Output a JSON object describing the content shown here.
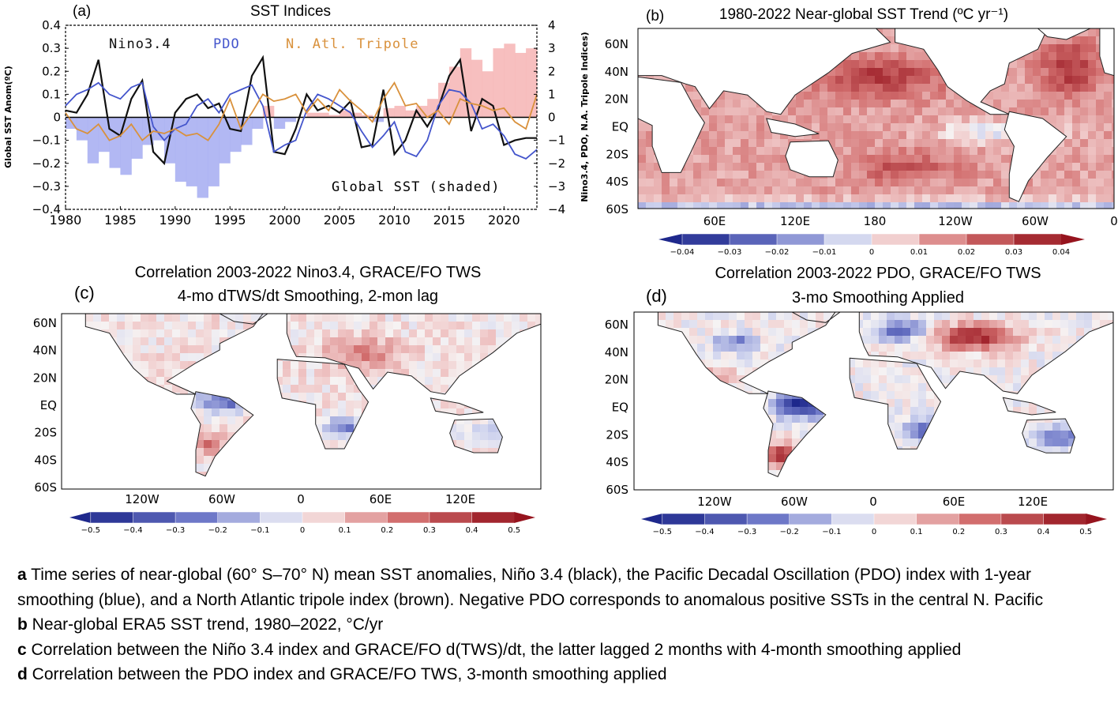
{
  "colors": {
    "nino": "#111111",
    "pdo": "#4455cc",
    "tripole": "#d9913c",
    "global_pos": "#f6b8b8",
    "global_neg": "#aab0f2",
    "land": "#ffffff",
    "coast": "#222222"
  },
  "chart_data": [
    {
      "type": "line",
      "panel_letter": "(a)",
      "title": "SST Indices",
      "ylabel_left": "Global SST Anom(ºC)",
      "ylabel_right": "Nino3.4, PDO, N.A. Tripole Indices)",
      "xlim": [
        1980,
        2023
      ],
      "ylim_left": [
        -0.4,
        0.4
      ],
      "ylim_right": [
        -4,
        4
      ],
      "x_ticks": [
        "1980",
        "1985",
        "1990",
        "1995",
        "2000",
        "2005",
        "2010",
        "2015",
        "2020"
      ],
      "y_ticks_left": [
        "0.4",
        "0.3",
        "0.2",
        "0.1",
        "0",
        "−0.1",
        "−0.2",
        "−0.3",
        "−0.4"
      ],
      "y_ticks_right": [
        "4",
        "3",
        "2",
        "1",
        "0",
        "−1",
        "−2",
        "−3",
        "−4"
      ],
      "legend": [
        "Nino3.4",
        "PDO",
        "N. Atl. Tripole"
      ],
      "annotation": "Global SST (shaded)",
      "x": [
        1980,
        1981,
        1982,
        1983,
        1984,
        1985,
        1986,
        1987,
        1988,
        1989,
        1990,
        1991,
        1992,
        1993,
        1994,
        1995,
        1996,
        1997,
        1998,
        1999,
        2000,
        2001,
        2002,
        2003,
        2004,
        2005,
        2006,
        2007,
        2008,
        2009,
        2010,
        2011,
        2012,
        2013,
        2014,
        2015,
        2016,
        2017,
        2018,
        2019,
        2020,
        2021,
        2022,
        2023
      ],
      "series": [
        {
          "name": "Global SST (shaded)",
          "axis": "left",
          "values": [
            -0.05,
            -0.1,
            -0.2,
            -0.15,
            -0.22,
            -0.25,
            -0.18,
            -0.12,
            -0.1,
            -0.2,
            -0.28,
            -0.3,
            -0.35,
            -0.3,
            -0.2,
            -0.15,
            -0.12,
            -0.05,
            0.05,
            -0.05,
            -0.02,
            0.0,
            0.02,
            0.02,
            0.01,
            0.03,
            0.02,
            0.01,
            -0.02,
            0.04,
            0.05,
            0.03,
            0.05,
            0.08,
            0.15,
            0.22,
            0.3,
            0.25,
            0.2,
            0.3,
            0.32,
            0.28,
            0.3,
            0.3
          ]
        },
        {
          "name": "Nino3.4",
          "axis": "right",
          "values": [
            0.3,
            0.2,
            1.0,
            2.5,
            -0.5,
            -0.8,
            0.8,
            1.6,
            -1.5,
            -2.0,
            0.2,
            0.8,
            1.0,
            0.4,
            0.6,
            -0.5,
            -0.6,
            1.8,
            2.6,
            -1.5,
            -1.6,
            -0.5,
            1.0,
            0.3,
            0.5,
            0.2,
            0.7,
            -1.3,
            -1.2,
            1.2,
            -1.6,
            -1.0,
            0.3,
            -0.4,
            0.4,
            1.8,
            2.5,
            -0.6,
            0.8,
            0.5,
            -1.2,
            -1.0,
            -0.9,
            -0.9
          ]
        },
        {
          "name": "PDO",
          "axis": "right",
          "values": [
            0.5,
            1.0,
            1.2,
            1.5,
            1.0,
            0.8,
            1.3,
            1.5,
            -0.4,
            -1.0,
            -0.5,
            -0.3,
            0.5,
            0.8,
            0.2,
            1.0,
            1.2,
            1.4,
            0.5,
            -1.5,
            -1.2,
            -1.0,
            0.3,
            1.0,
            0.8,
            0.5,
            0.2,
            -0.6,
            -1.3,
            -0.8,
            -0.2,
            -1.5,
            -1.7,
            -1.0,
            0.5,
            1.2,
            1.1,
            0.6,
            -0.5,
            -0.3,
            -0.8,
            -1.6,
            -1.8,
            -1.4
          ]
        },
        {
          "name": "N. Atl. Tripole",
          "axis": "right",
          "values": [
            0.2,
            -0.5,
            -0.7,
            -0.3,
            -1.0,
            -0.8,
            -0.3,
            -1.0,
            -0.6,
            -0.7,
            -0.5,
            -0.8,
            -0.7,
            -1.0,
            -0.3,
            0.8,
            -0.5,
            0.2,
            1.0,
            0.7,
            0.8,
            1.0,
            0.2,
            0.8,
            0.3,
            1.2,
            0.7,
            0.3,
            -0.2,
            0.8,
            1.5,
            0.5,
            0.6,
            0.0,
            0.3,
            -0.3,
            0.8,
            0.6,
            0.5,
            0.3,
            0.4,
            -0.2,
            -0.5,
            1.0
          ]
        }
      ]
    },
    {
      "type": "heatmap",
      "panel_letter": "(b)",
      "title": "1980-2022 Near-global SST Trend (ºC yr⁻¹)",
      "lat_ticks": [
        "60N",
        "40N",
        "20N",
        "EQ",
        "20S",
        "40S",
        "60S"
      ],
      "lon_ticks": [
        "60E",
        "120E",
        "180",
        "120W",
        "60W",
        "0"
      ],
      "colorbar_ticks": [
        "−0.04",
        "−0.03",
        "−0.02",
        "−0.01",
        "0",
        "0.01",
        "0.02",
        "0.03",
        "0.04"
      ],
      "colorbar_range": [
        -0.04,
        0.04
      ]
    },
    {
      "type": "heatmap",
      "panel_letter": "(c)",
      "title_line1": "Correlation 2003-2022 Nino3.4, GRACE/FO TWS",
      "title_line2": "4-mo dTWS/dt Smoothing, 2-mon lag",
      "lat_ticks": [
        "60N",
        "40N",
        "20N",
        "EQ",
        "20S",
        "40S",
        "60S"
      ],
      "lon_ticks": [
        "120W",
        "60W",
        "0",
        "60E",
        "120E"
      ],
      "colorbar_ticks": [
        "−0.5",
        "−0.4",
        "−0.3",
        "−0.2",
        "−0.1",
        "0",
        "0.1",
        "0.2",
        "0.3",
        "0.4",
        "0.5"
      ],
      "colorbar_range": [
        -0.5,
        0.5
      ]
    },
    {
      "type": "heatmap",
      "panel_letter": "(d)",
      "title_line1": "Correlation 2003-2022 PDO, GRACE/FO TWS",
      "title_line2": "3-mo Smoothing Applied",
      "lat_ticks": [
        "60N",
        "40N",
        "20N",
        "EQ",
        "20S",
        "40S",
        "60S"
      ],
      "lon_ticks": [
        "120W",
        "60W",
        "0",
        "60E",
        "120E"
      ],
      "colorbar_ticks": [
        "−0.5",
        "−0.4",
        "−0.3",
        "−0.2",
        "−0.1",
        "0",
        "0.1",
        "0.2",
        "0.3",
        "0.4",
        "0.5"
      ],
      "colorbar_range": [
        -0.5,
        0.5
      ]
    }
  ],
  "caption": {
    "a_letter": "a",
    "a_text": " Time series of near-global (60° S–70° N) mean SST anomalies, Niño 3.4 (black), the Pacific Decadal Oscillation (PDO) index with 1-year smoothing (blue), and a North Atlantic tripole index (brown). Negative PDO corresponds to anomalous positive SSTs in the central N. Pacific",
    "b_letter": "b",
    "b_text": " Near-global ERA5 SST trend, 1980–2022, °C/yr",
    "c_letter": "c",
    "c_text": " Correlation between the Niño 3.4 index and GRACE/FO d(TWS)/dt, the latter lagged 2 months with 4-month smoothing applied",
    "d_letter": "d",
    "d_text": " Correlation between the PDO index and GRACE/FO TWS, 3-month smoothing applied"
  }
}
